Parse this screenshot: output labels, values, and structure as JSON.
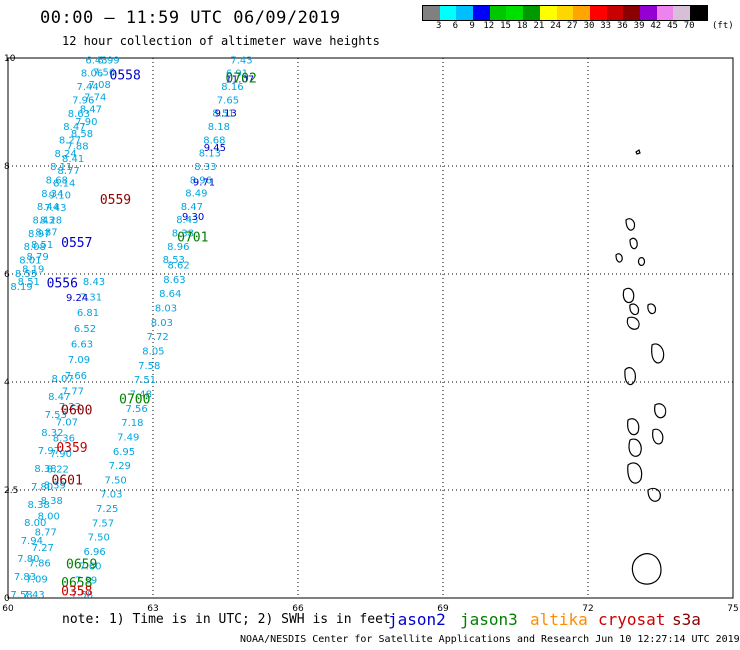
{
  "header": {
    "title": "00:00 – 11:59 UTC 06/09/2019",
    "subtitle": "12 hour collection of altimeter wave heights"
  },
  "colorbar": {
    "colors": [
      "#808080",
      "#00ffff",
      "#00bfff",
      "#0000ff",
      "#00c800",
      "#00e000",
      "#009a00",
      "#ffff00",
      "#ffd700",
      "#ffa500",
      "#ff0000",
      "#c80000",
      "#8b0000",
      "#9400d3",
      "#ee82ee",
      "#d8bfd8",
      "#000000"
    ],
    "labels": [
      "3",
      "6",
      "9",
      "12",
      "15",
      "18",
      "21",
      "24",
      "27",
      "30",
      "33",
      "36",
      "39",
      "42",
      "45",
      "70"
    ],
    "unit": "(ft)"
  },
  "axes": {
    "x_ticks": [
      "60",
      "63",
      "66",
      "69",
      "72",
      "75"
    ],
    "y_ticks": [
      "0",
      "2.5",
      "4",
      "6",
      "8",
      "10"
    ]
  },
  "note": "note: 1) Time is in UTC; 2) SWH is in feet",
  "legend": [
    {
      "name": "jason2",
      "color": "#0000cc"
    },
    {
      "name": "jason3",
      "color": "#008000"
    },
    {
      "name": "altika",
      "color": "#ff8c00"
    },
    {
      "name": "cryosat",
      "color": "#cc0000"
    },
    {
      "name": "s3a",
      "color": "#8b0000"
    }
  ],
  "credit": "NOAA/NESDIS Center for Satellite Applications and Research   Jun 10 12:27:14 UTC 2019",
  "time_labels": [
    {
      "text": "0558",
      "color": "#0000cc",
      "lon": 62.1,
      "lat": 9.6
    },
    {
      "text": "0702",
      "color": "#008000",
      "lon": 64.5,
      "lat": 9.55
    },
    {
      "text": "0559",
      "color": "#8b0000",
      "lon": 61.9,
      "lat": 7.3
    },
    {
      "text": "0557",
      "color": "#0000cc",
      "lon": 61.1,
      "lat": 6.5
    },
    {
      "text": "0701",
      "color": "#008000",
      "lon": 63.5,
      "lat": 6.6
    },
    {
      "text": "0556",
      "color": "#0000cc",
      "lon": 60.8,
      "lat": 5.75
    },
    {
      "text": "0700",
      "color": "#008000",
      "lon": 62.3,
      "lat": 3.6
    },
    {
      "text": "0600",
      "color": "#8b0000",
      "lon": 61.1,
      "lat": 3.4
    },
    {
      "text": "0359",
      "color": "#cc0000",
      "lon": 61.0,
      "lat": 2.7
    },
    {
      "text": "0601",
      "color": "#8b0000",
      "lon": 60.9,
      "lat": 2.1
    },
    {
      "text": "0659",
      "color": "#008000",
      "lon": 61.2,
      "lat": 0.55
    },
    {
      "text": "0658",
      "color": "#008000",
      "lon": 61.1,
      "lat": 0.2
    },
    {
      "text": "0358",
      "color": "#cc0000",
      "lon": 61.1,
      "lat": 0.05
    }
  ],
  "tracks": [
    {
      "color": "#00a6e0",
      "start": [
        61.85,
        9.9
      ],
      "end": [
        60.2,
        5.8
      ],
      "values": [
        "6.99",
        "7.56",
        "7.08",
        "7.74",
        "8.47",
        "7.90",
        "8.58",
        "7.88",
        "8.41",
        "8.77",
        "8.14",
        "9.10",
        "7.43",
        "8.28",
        "8.87",
        "8.51",
        "8.79",
        "8.19",
        "8.51"
      ]
    },
    {
      "color": "#00a6e0",
      "start": [
        61.6,
        9.9
      ],
      "end": [
        60.05,
        5.7
      ],
      "values": [
        "6.43",
        "8.06",
        "7.44",
        "7.96",
        "8.63",
        "8.47",
        "8.27",
        "8.24",
        "8.11",
        "8.68",
        "8.34",
        "8.44",
        "8.43",
        "8.97",
        "8.08",
        "8.01",
        "8.55",
        "8.19"
      ]
    },
    {
      "color": "#00a6e0",
      "start": [
        61.55,
        5.8
      ],
      "end": [
        60.3,
        0.0
      ],
      "values": [
        "8.43",
        "7.31",
        "6.81",
        "6.52",
        "6.63",
        "7.09",
        "7.66",
        "7.77",
        "7.23",
        "7.07",
        "8.36",
        "7.90",
        "8.22",
        "8.39",
        "8.38",
        "8.00",
        "8.77",
        "7.27",
        "7.86",
        "7.09",
        "7.43"
      ]
    },
    {
      "color": "#00a6e0",
      "start": [
        60.9,
        4.0
      ],
      "end": [
        60.05,
        0.0
      ],
      "values": [
        "8.07",
        "8.47",
        "7.53",
        "8.32",
        "7.97",
        "8.38",
        "7.80",
        "8.38",
        "8.00",
        "7.94",
        "7.80",
        "7.83",
        "7.58"
      ]
    },
    {
      "color": "#00a6e0",
      "start": [
        63.3,
        6.1
      ],
      "end": [
        61.3,
        0.0
      ],
      "values": [
        "8.62",
        "8.63",
        "8.64",
        "8.03",
        "8.03",
        "7.72",
        "8.05",
        "7.58",
        "7.51",
        "7.48",
        "7.56",
        "7.18",
        "7.49",
        "6.95",
        "7.29",
        "7.50",
        "7.03",
        "7.25",
        "7.57",
        "7.50",
        "6.96",
        "7.60",
        "7.39",
        "7.58"
      ]
    },
    {
      "color": "#00a6e0",
      "start": [
        64.6,
        9.9
      ],
      "end": [
        63.2,
        6.2
      ],
      "values": [
        "7.43",
        "6.91",
        "8.16",
        "7.65",
        "8.51",
        "8.18",
        "8.68",
        "8.13",
        "8.33",
        "8.96",
        "8.49",
        "8.47",
        "8.43",
        "8.38",
        "8.96",
        "8.53"
      ]
    },
    {
      "color": "#0000cc",
      "start": [
        64.5,
        9.55
      ],
      "end": [
        63.6,
        7.0
      ],
      "values": [
        "11.07",
        "9.13",
        "9.45",
        "9.71",
        "9.30"
      ]
    },
    {
      "color": "#0000cc",
      "start": [
        61.2,
        5.5
      ],
      "end": [
        61.0,
        5.0
      ],
      "values": [
        "9.24"
      ]
    }
  ]
}
